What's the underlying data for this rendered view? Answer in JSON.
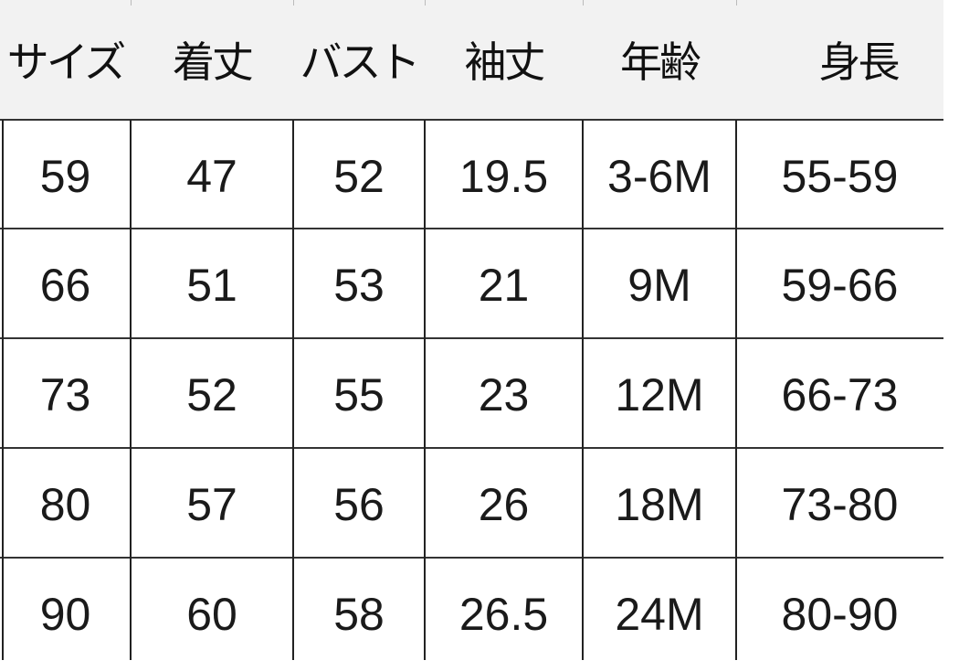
{
  "headers": [
    "サイズ",
    "着丈",
    "バスト",
    "袖丈",
    "年齢",
    "身長"
  ],
  "rows": [
    [
      "59",
      "47",
      "52",
      "19.5",
      "3-6M",
      "55-59"
    ],
    [
      "66",
      "51",
      "53",
      "21",
      "9M",
      "59-66"
    ],
    [
      "73",
      "52",
      "55",
      "23",
      "12M",
      "66-73"
    ],
    [
      "80",
      "57",
      "56",
      "26",
      "18M",
      "73-80"
    ],
    [
      "90",
      "60",
      "58",
      "26.5",
      "24M",
      "80-90"
    ]
  ],
  "colors": {
    "header_background": "#f2f2f2",
    "grid_line": "#222222"
  }
}
